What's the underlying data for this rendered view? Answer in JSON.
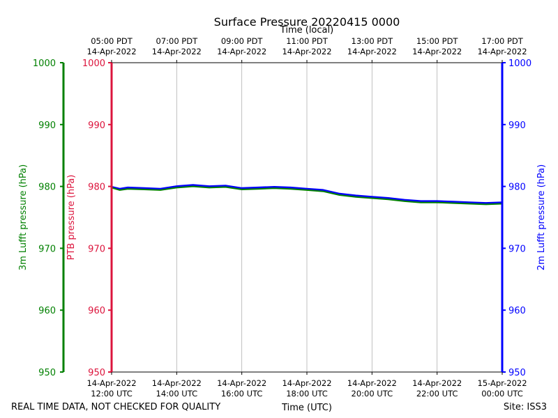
{
  "chart_data": {
    "type": "line",
    "title": "Surface Pressure 20220415 0000",
    "xlabel": "Time (UTC)",
    "x2label": "Time (local)",
    "footer_left": "REAL TIME DATA, NOT CHECKED FOR QUALITY",
    "footer_right": "Site: ISS3",
    "x_range_hours_utc": [
      12,
      24
    ],
    "ylim": [
      950,
      1000
    ],
    "yticks": [
      950,
      960,
      970,
      980,
      990,
      1000
    ],
    "grid": "vertical",
    "axes": {
      "left_outer": {
        "label": "3m Lufft pressure (hPa)",
        "color": "#008000"
      },
      "left_inner": {
        "label": "PTB pressure (hPa)",
        "color": "#dc143c"
      },
      "right": {
        "label": "2m Lufft pressure (hPa)",
        "color": "#0000ff"
      }
    },
    "x_ticks_bottom": [
      {
        "hour": 12,
        "line1": "14-Apr-2022",
        "line2": "12:00 UTC"
      },
      {
        "hour": 14,
        "line1": "14-Apr-2022",
        "line2": "14:00 UTC"
      },
      {
        "hour": 16,
        "line1": "14-Apr-2022",
        "line2": "16:00 UTC"
      },
      {
        "hour": 18,
        "line1": "14-Apr-2022",
        "line2": "18:00 UTC"
      },
      {
        "hour": 20,
        "line1": "14-Apr-2022",
        "line2": "20:00 UTC"
      },
      {
        "hour": 22,
        "line1": "14-Apr-2022",
        "line2": "22:00 UTC"
      },
      {
        "hour": 24,
        "line1": "15-Apr-2022",
        "line2": "00:00 UTC"
      }
    ],
    "x_ticks_top": [
      {
        "hour": 12,
        "line1": "05:00 PDT",
        "line2": "14-Apr-2022"
      },
      {
        "hour": 14,
        "line1": "07:00 PDT",
        "line2": "14-Apr-2022"
      },
      {
        "hour": 16,
        "line1": "09:00 PDT",
        "line2": "14-Apr-2022"
      },
      {
        "hour": 18,
        "line1": "11:00 PDT",
        "line2": "14-Apr-2022"
      },
      {
        "hour": 20,
        "line1": "13:00 PDT",
        "line2": "14-Apr-2022"
      },
      {
        "hour": 22,
        "line1": "15:00 PDT",
        "line2": "14-Apr-2022"
      },
      {
        "hour": 24,
        "line1": "17:00 PDT",
        "line2": "14-Apr-2022"
      }
    ],
    "series": [
      {
        "name": "2m Lufft pressure",
        "color": "#0000ff",
        "x": [
          12.0,
          12.25,
          12.5,
          13.0,
          13.5,
          14.0,
          14.5,
          15.0,
          15.5,
          16.0,
          16.5,
          17.0,
          17.5,
          18.0,
          18.5,
          19.0,
          19.5,
          20.0,
          20.5,
          21.0,
          21.5,
          22.0,
          22.5,
          23.0,
          23.5,
          24.0
        ],
        "values": [
          979.9,
          979.6,
          979.8,
          979.7,
          979.6,
          980.0,
          980.2,
          980.0,
          980.1,
          979.7,
          979.8,
          979.9,
          979.8,
          979.6,
          979.4,
          978.8,
          978.5,
          978.3,
          978.1,
          977.8,
          977.6,
          977.6,
          977.5,
          977.4,
          977.3,
          977.4
        ]
      },
      {
        "name": "3m Lufft pressure",
        "color": "#008000",
        "x": [
          12.0,
          12.25,
          12.5,
          13.0,
          13.5,
          14.0,
          14.5,
          15.0,
          15.5,
          16.0,
          16.5,
          17.0,
          17.5,
          18.0,
          18.5,
          19.0,
          19.5,
          20.0,
          20.5,
          21.0,
          21.5,
          22.0,
          22.5,
          23.0,
          23.5,
          24.0
        ],
        "values": [
          979.8,
          979.4,
          979.6,
          979.5,
          979.4,
          979.8,
          980.0,
          979.8,
          979.9,
          979.5,
          979.6,
          979.7,
          979.6,
          979.4,
          979.2,
          978.6,
          978.3,
          978.1,
          977.9,
          977.6,
          977.4,
          977.4,
          977.3,
          977.2,
          977.1,
          977.2
        ]
      }
    ]
  }
}
